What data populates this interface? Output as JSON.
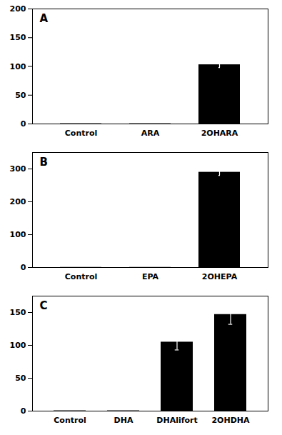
{
  "chart_data": [
    {
      "type": "bar",
      "title": "A",
      "categories": [
        "Control",
        "ARA",
        "2OHARA"
      ],
      "values": [
        0.5,
        0.5,
        103
      ],
      "errors": [
        0,
        0,
        5
      ],
      "color": "#000000",
      "ylim": [
        0,
        200
      ],
      "yticks": [
        0,
        50,
        100,
        150,
        200
      ]
    },
    {
      "type": "bar",
      "title": "B",
      "categories": [
        "Control",
        "EPA",
        "2OHEPA"
      ],
      "values": [
        0.5,
        0.5,
        290
      ],
      "errors": [
        0,
        0,
        10
      ],
      "color": "#000000",
      "ylim": [
        0,
        350
      ],
      "yticks": [
        0,
        100,
        200,
        300
      ]
    },
    {
      "type": "bar",
      "title": "C",
      "categories": [
        "Control",
        "DHA",
        "DHAlifort",
        "2OHDHA"
      ],
      "values": [
        0.5,
        0.5,
        105,
        147
      ],
      "errors": [
        0,
        0,
        12,
        15
      ],
      "color": "#000000",
      "ylim": [
        0,
        175
      ],
      "yticks": [
        0,
        50,
        100,
        150
      ]
    }
  ]
}
